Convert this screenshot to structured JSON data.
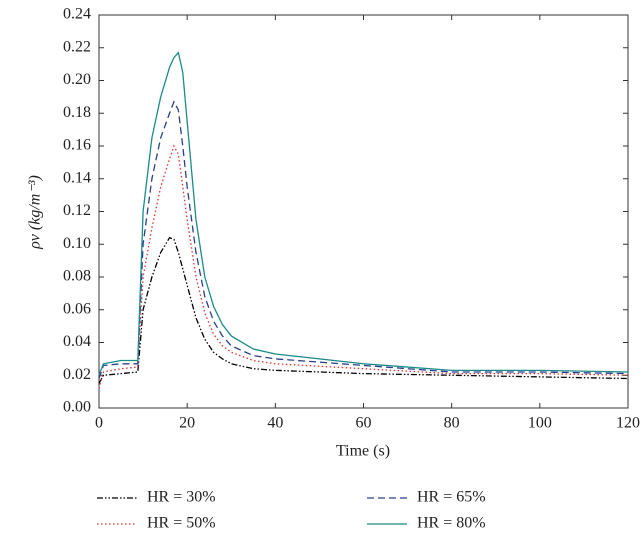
{
  "chart_data": {
    "type": "line",
    "xlabel": "Time (s)",
    "ylabel": "ρv (kg/m⁻³)",
    "x": [
      0,
      1,
      5,
      8.8,
      10,
      12,
      14,
      16,
      17,
      18,
      19,
      20,
      22,
      24,
      26,
      28,
      30,
      35,
      40,
      60,
      80,
      100,
      120
    ],
    "series": [
      {
        "name": "HR = 30%",
        "color": "#000000",
        "dash": "6 2 1.5 2 1.5 2",
        "values": [
          0.015,
          0.02,
          0.021,
          0.022,
          0.06,
          0.08,
          0.095,
          0.104,
          0.103,
          0.095,
          0.085,
          0.075,
          0.055,
          0.042,
          0.034,
          0.03,
          0.027,
          0.024,
          0.023,
          0.021,
          0.02,
          0.019,
          0.018
        ]
      },
      {
        "name": "HR = 50%",
        "color": "#e03030",
        "dash": "1.5 2.5",
        "values": [
          0.012,
          0.022,
          0.024,
          0.025,
          0.08,
          0.11,
          0.135,
          0.152,
          0.16,
          0.155,
          0.135,
          0.115,
          0.08,
          0.058,
          0.045,
          0.038,
          0.034,
          0.029,
          0.027,
          0.024,
          0.021,
          0.021,
          0.02
        ]
      },
      {
        "name": "HR = 65%",
        "color": "#2b3f8c",
        "dash": "7 4",
        "values": [
          0.018,
          0.026,
          0.027,
          0.027,
          0.1,
          0.14,
          0.165,
          0.18,
          0.187,
          0.182,
          0.16,
          0.135,
          0.095,
          0.068,
          0.053,
          0.044,
          0.038,
          0.032,
          0.03,
          0.026,
          0.022,
          0.022,
          0.021
        ]
      },
      {
        "name": "HR = 80%",
        "color": "#1a8a8a",
        "dash": "none",
        "values": [
          0.02,
          0.027,
          0.029,
          0.029,
          0.12,
          0.165,
          0.19,
          0.208,
          0.214,
          0.217,
          0.205,
          0.175,
          0.115,
          0.08,
          0.062,
          0.051,
          0.044,
          0.036,
          0.033,
          0.027,
          0.023,
          0.023,
          0.022
        ]
      }
    ],
    "xlim": [
      0,
      120
    ],
    "xticks": [
      0,
      20,
      40,
      60,
      80,
      100,
      120
    ],
    "ylim": [
      0,
      0.24
    ],
    "yticks": [
      {
        "value": 0,
        "label": "0.00"
      },
      {
        "value": 0.02,
        "label": "0.02"
      },
      {
        "value": 0.04,
        "label": "0.04"
      },
      {
        "value": 0.06,
        "label": "0.06"
      },
      {
        "value": 0.08,
        "label": "0.08"
      },
      {
        "value": 0.1,
        "label": "0.10"
      },
      {
        "value": 0.12,
        "label": "0.12"
      },
      {
        "value": 0.14,
        "label": "0.14"
      },
      {
        "value": 0.16,
        "label": "0.16"
      },
      {
        "value": 0.18,
        "label": "0.18"
      },
      {
        "value": 0.2,
        "label": "0.20"
      },
      {
        "value": 0.22,
        "label": "0.22"
      },
      {
        "value": 0.24,
        "label": "0.24"
      }
    ],
    "grid": false
  }
}
